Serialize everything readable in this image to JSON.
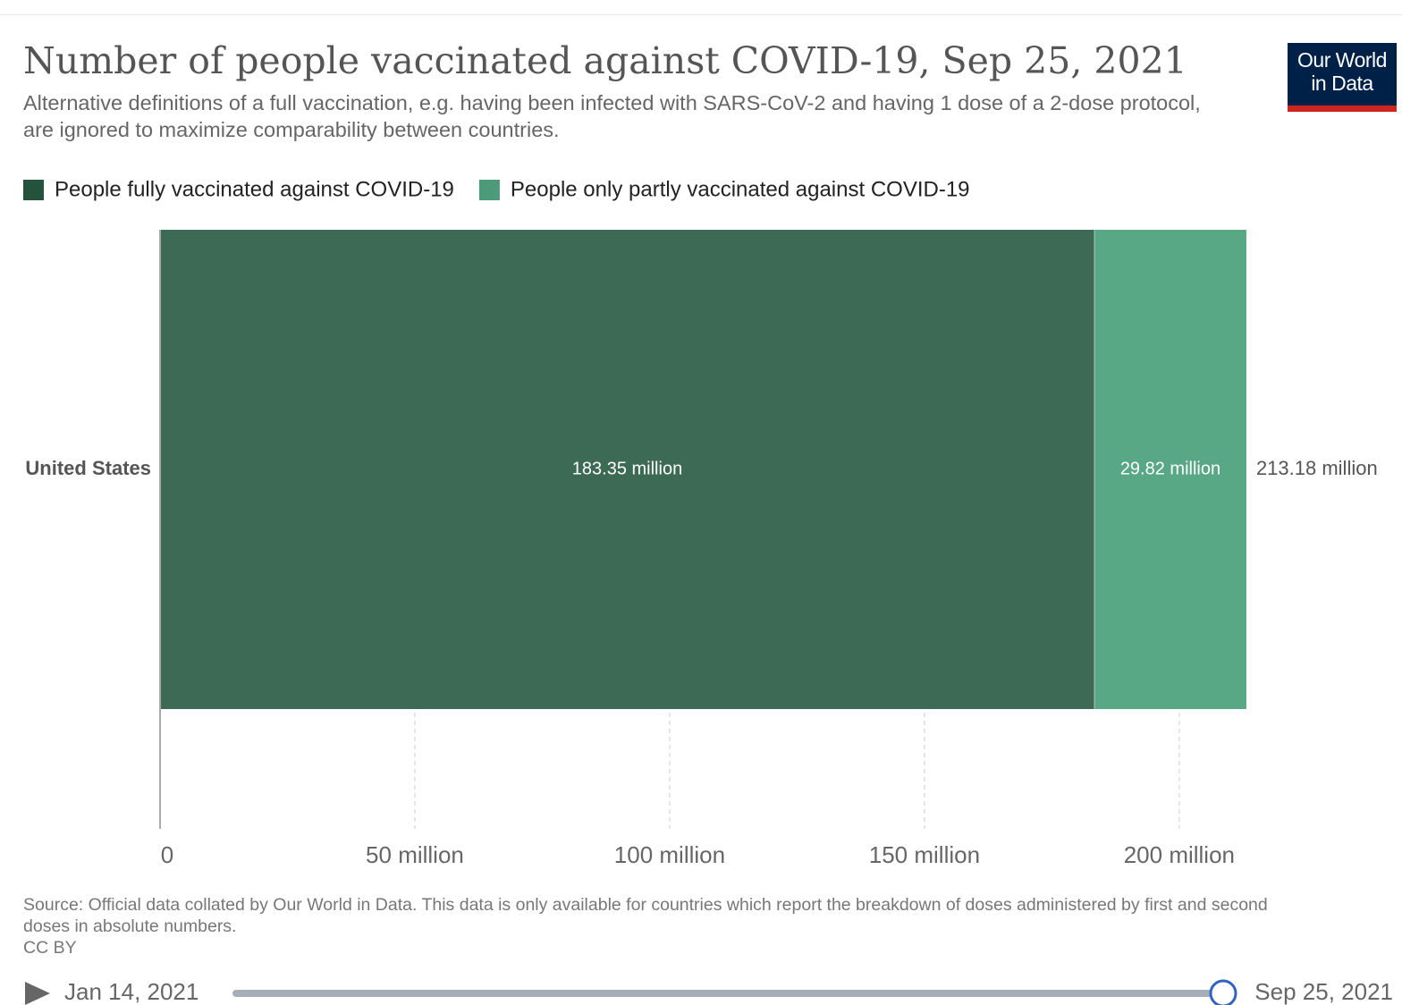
{
  "chart_data": {
    "type": "bar",
    "orientation": "horizontal",
    "stacked": true,
    "title": "Number of people vaccinated against COVID-19, Sep 25, 2021",
    "subtitle": "Alternative definitions of a full vaccination, e.g. having been infected with SARS-CoV-2 and having 1 dose of a 2-dose protocol, are ignored to maximize comparability between countries.",
    "categories": [
      "United States"
    ],
    "series": [
      {
        "name": "People fully vaccinated against COVID-19",
        "color": "#3c6a54",
        "legend_color": "#24523c",
        "values": [
          183350000
        ],
        "value_labels": [
          "183.35 million"
        ]
      },
      {
        "name": "People only partly vaccinated against COVID-19",
        "color": "#58a886",
        "legend_color": "#4d9a78",
        "values": [
          29820000
        ],
        "value_labels": [
          "29.82 million"
        ]
      }
    ],
    "totals": [
      213180000
    ],
    "total_labels": [
      "213.18 million"
    ],
    "xlim": [
      0,
      213180000
    ],
    "xticks": [
      0,
      {
        "value": 50000000,
        "label": "50 million"
      },
      {
        "value": 100000000,
        "label": "100 million"
      },
      {
        "value": 150000000,
        "label": "150 million"
      },
      {
        "value": 200000000,
        "label": "200 million"
      }
    ],
    "grid": true,
    "legend": "top-left",
    "source": "Source: Official data collated by Our World in Data. This data is only available for countries which report the breakdown of doses administered by first and second doses in absolute numbers.",
    "license": "CC BY",
    "logo": "Our World in Data",
    "timeline": {
      "start": "Jan 14, 2021",
      "end": "Sep 25, 2021"
    }
  }
}
